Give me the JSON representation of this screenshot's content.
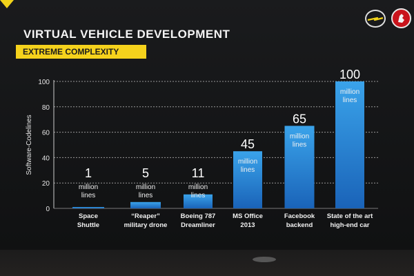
{
  "header": {
    "title": "VIRTUAL VEHICLE DEVELOPMENT",
    "subtitle": "EXTREME COMPLEXITY"
  },
  "logos": [
    "opel-logo",
    "vauxhall-griffin-logo"
  ],
  "colors": {
    "accent": "#f5d21c",
    "bar_top": "#3aa3ea",
    "bar_bottom": "#1a63b8",
    "background": "#141414"
  },
  "chart_data": {
    "type": "bar",
    "title": "",
    "xlabel": "",
    "ylabel": "Software-Codelines",
    "ylim": [
      0,
      100
    ],
    "yticks": [
      0,
      20,
      40,
      60,
      80,
      100
    ],
    "grid": true,
    "categories": [
      [
        "Space",
        "Shuttle"
      ],
      [
        "“Reaper”",
        "military drone"
      ],
      [
        "Boeing 787",
        "Dreamliner"
      ],
      [
        "MS Office",
        "2013"
      ],
      [
        "Facebook",
        "backend"
      ],
      [
        "State of the art",
        "high-end car"
      ]
    ],
    "values": [
      1,
      5,
      11,
      45,
      65,
      100
    ],
    "value_unit": [
      "million",
      "lines"
    ]
  }
}
